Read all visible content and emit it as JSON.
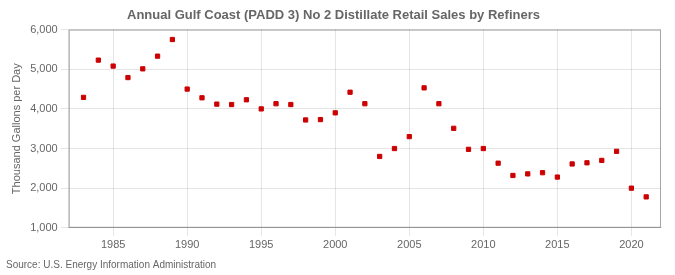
{
  "chart_data": {
    "type": "scatter",
    "title": "Annual Gulf Coast (PADD 3) No 2 Distillate Retail Sales by Refiners",
    "ylabel": "Thousand Gallons per Day",
    "source": "Source: U.S. Energy Information Administration",
    "x": [
      1983,
      1984,
      1985,
      1986,
      1987,
      1988,
      1989,
      1990,
      1991,
      1992,
      1993,
      1994,
      1995,
      1996,
      1997,
      1998,
      1999,
      2000,
      2001,
      2002,
      2003,
      2004,
      2005,
      2006,
      2007,
      2008,
      2009,
      2010,
      2011,
      2012,
      2013,
      2014,
      2015,
      2016,
      2017,
      2018,
      2019,
      2020,
      2021
    ],
    "values": [
      4290,
      5230,
      5080,
      4790,
      5010,
      5330,
      5750,
      4500,
      4280,
      4120,
      4110,
      4230,
      4000,
      4130,
      4110,
      3720,
      3730,
      3900,
      4420,
      4130,
      2800,
      3000,
      3300,
      4530,
      4130,
      3510,
      2980,
      3000,
      2630,
      2320,
      2360,
      2390,
      2280,
      2610,
      2640,
      2700,
      2930,
      2000,
      1780
    ],
    "color": "#cc0000",
    "marker": "square",
    "xlim": [
      1982,
      2022
    ],
    "xticks": [
      1985,
      1990,
      1995,
      2000,
      2005,
      2010,
      2015,
      2020
    ],
    "ylim": [
      1000,
      6000
    ],
    "yticks": [
      {
        "value": 1000,
        "label": "1,000"
      },
      {
        "value": 2000,
        "label": "2,000"
      },
      {
        "value": 3000,
        "label": "3,000"
      },
      {
        "value": 4000,
        "label": "4,000"
      },
      {
        "value": 5000,
        "label": "5,000"
      },
      {
        "value": 6000,
        "label": "6,000"
      }
    ],
    "grid": true
  }
}
